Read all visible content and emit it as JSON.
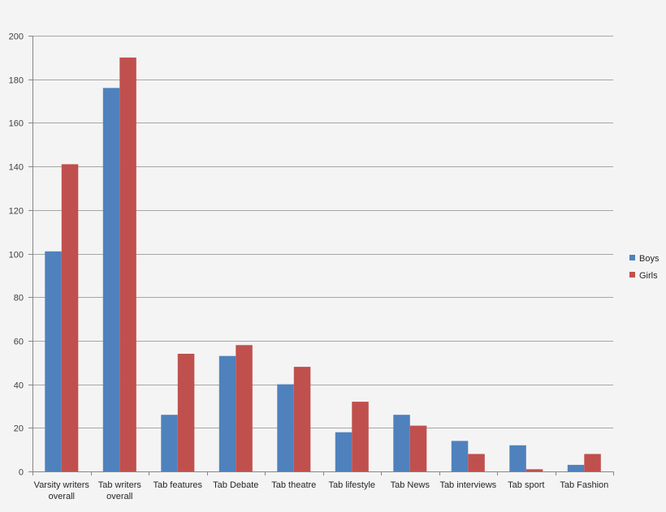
{
  "chart_data": {
    "type": "bar",
    "title": "",
    "xlabel": "",
    "ylabel": "",
    "ylim": [
      0,
      200
    ],
    "yticks": [
      0,
      20,
      40,
      60,
      80,
      100,
      120,
      140,
      160,
      180,
      200
    ],
    "grid": true,
    "legend_position": "right",
    "categories": [
      [
        "Varsity writers",
        "overall"
      ],
      [
        "Tab writers",
        "overall"
      ],
      [
        "Tab features"
      ],
      [
        "Tab Debate"
      ],
      [
        "Tab theatre"
      ],
      [
        "Tab lifestyle"
      ],
      [
        "Tab News"
      ],
      [
        "Tab interviews"
      ],
      [
        "Tab sport"
      ],
      [
        "Tab Fashion"
      ]
    ],
    "series": [
      {
        "name": "Boys",
        "color": "#4f81bd",
        "values": [
          101,
          176,
          26,
          53,
          40,
          18,
          26,
          14,
          12,
          3
        ]
      },
      {
        "name": "Girls",
        "color": "#c0504d",
        "values": [
          141,
          190,
          54,
          58,
          48,
          32,
          21,
          8,
          1,
          8
        ]
      }
    ]
  }
}
